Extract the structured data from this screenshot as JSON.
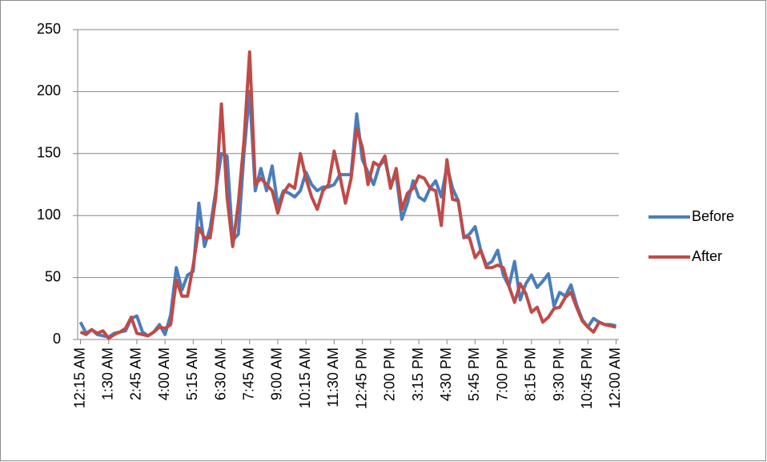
{
  "chart_data": {
    "type": "line",
    "categories": [
      "12:15 AM",
      null,
      null,
      null,
      null,
      "1:30 AM",
      null,
      null,
      null,
      null,
      "2:45 AM",
      null,
      null,
      null,
      null,
      "4:00 AM",
      null,
      null,
      null,
      null,
      "5:15 AM",
      null,
      null,
      null,
      null,
      "6:30 AM",
      null,
      null,
      null,
      null,
      "7:45 AM",
      null,
      null,
      null,
      null,
      "9:00 AM",
      null,
      null,
      null,
      null,
      "10:15 AM",
      null,
      null,
      null,
      null,
      "11:30 AM",
      null,
      null,
      null,
      null,
      "12:45 PM",
      null,
      null,
      null,
      null,
      "2:00 PM",
      null,
      null,
      null,
      null,
      "3:15 PM",
      null,
      null,
      null,
      null,
      "4:30 PM",
      null,
      null,
      null,
      null,
      "5:45 PM",
      null,
      null,
      null,
      null,
      "7:00 PM",
      null,
      null,
      null,
      null,
      "8:15 PM",
      null,
      null,
      null,
      null,
      "9:30 PM",
      null,
      null,
      null,
      null,
      "10:45 PM",
      null,
      null,
      null,
      null,
      "12:00 AM"
    ],
    "series": [
      {
        "name": "Before",
        "color": "#4a7ebb",
        "values": [
          14,
          5,
          8,
          4,
          3,
          2,
          5,
          6,
          7,
          17,
          19,
          6,
          3,
          6,
          12,
          4,
          20,
          58,
          40,
          52,
          55,
          110,
          75,
          90,
          120,
          150,
          148,
          80,
          85,
          150,
          200,
          120,
          138,
          120,
          140,
          108,
          120,
          118,
          115,
          120,
          135,
          125,
          120,
          123,
          123,
          125,
          133,
          133,
          133,
          182,
          145,
          135,
          125,
          140,
          145,
          125,
          133,
          97,
          110,
          128,
          115,
          112,
          122,
          128,
          115,
          140,
          122,
          112,
          82,
          85,
          91,
          72,
          60,
          63,
          72,
          52,
          43,
          63,
          32,
          45,
          52,
          42,
          47,
          53,
          27,
          38,
          35,
          44,
          28,
          16,
          10,
          17,
          14,
          12,
          12,
          11
        ]
      },
      {
        "name": "After",
        "color": "#be4b48",
        "values": [
          6,
          4,
          8,
          5,
          7,
          1,
          4,
          6,
          9,
          18,
          5,
          4,
          3,
          6,
          10,
          9,
          12,
          48,
          35,
          35,
          60,
          90,
          82,
          82,
          115,
          190,
          115,
          75,
          110,
          160,
          232,
          125,
          130,
          125,
          120,
          102,
          118,
          125,
          122,
          150,
          130,
          115,
          105,
          120,
          125,
          152,
          132,
          110,
          130,
          170,
          155,
          125,
          143,
          140,
          148,
          122,
          138,
          105,
          118,
          122,
          132,
          130,
          122,
          120,
          92,
          145,
          113,
          112,
          83,
          82,
          66,
          72,
          58,
          58,
          60,
          58,
          43,
          30,
          45,
          37,
          22,
          26,
          14,
          18,
          25,
          26,
          34,
          38,
          26,
          15,
          10,
          6,
          14,
          12,
          11,
          10
        ]
      }
    ],
    "ylim": [
      0,
      250
    ],
    "yticks": [
      0,
      50,
      100,
      150,
      200,
      250
    ],
    "grid": true,
    "legend": "right"
  }
}
